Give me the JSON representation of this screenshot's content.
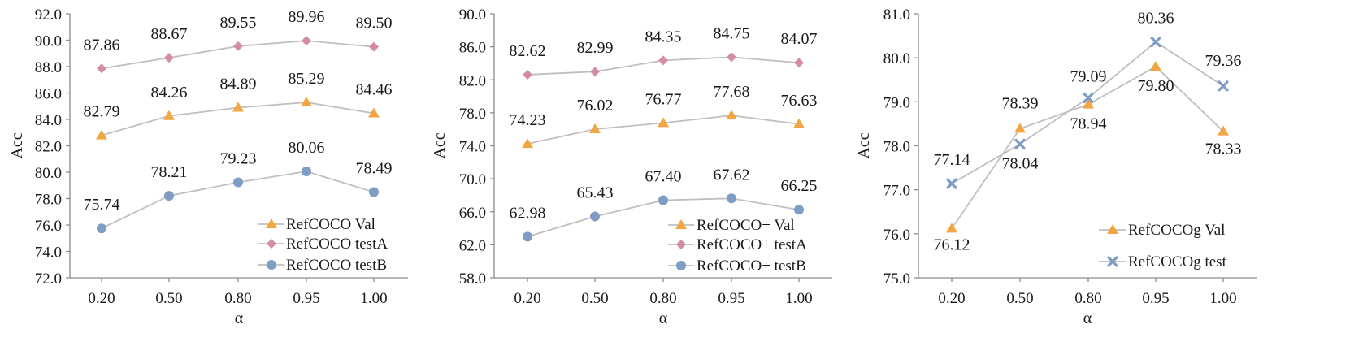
{
  "chart_data": [
    {
      "type": "line",
      "xlabel": "α",
      "ylabel": "Acc",
      "x": [
        "0.20",
        "0.50",
        "0.80",
        "0.95",
        "1.00"
      ],
      "ylim": [
        72.0,
        92.0
      ],
      "yticks": [
        "72.0",
        "74.0",
        "76.0",
        "78.0",
        "80.0",
        "82.0",
        "84.0",
        "86.0",
        "88.0",
        "90.0",
        "92.0"
      ],
      "legend": "bottom-right",
      "grid": false,
      "series": [
        {
          "name": "RefCOCO Val",
          "marker": "triangle",
          "color": "#f2a541",
          "values": [
            82.79,
            84.26,
            84.89,
            85.29,
            84.46
          ],
          "labels": [
            "82.79",
            "84.26",
            "84.89",
            "85.29",
            "84.46"
          ]
        },
        {
          "name": "RefCOCO testA",
          "marker": "diamond",
          "color": "#d48ca6",
          "values": [
            87.86,
            88.67,
            89.55,
            89.96,
            89.5
          ],
          "labels": [
            "87.86",
            "88.67",
            "89.55",
            "89.96",
            "89.50"
          ]
        },
        {
          "name": "RefCOCO testB",
          "marker": "circle",
          "color": "#7f9cc4",
          "values": [
            75.74,
            78.21,
            79.23,
            80.06,
            78.49
          ],
          "labels": [
            "75.74",
            "78.21",
            "79.23",
            "80.06",
            "78.49"
          ]
        }
      ]
    },
    {
      "type": "line",
      "xlabel": "α",
      "ylabel": "Acc",
      "x": [
        "0.20",
        "0.50",
        "0.80",
        "0.95",
        "1.00"
      ],
      "ylim": [
        58.0,
        90.0
      ],
      "yticks": [
        "58.0",
        "62.0",
        "66.0",
        "70.0",
        "74.0",
        "78.0",
        "82.0",
        "86.0",
        "90.0"
      ],
      "legend": "bottom-right",
      "grid": false,
      "series": [
        {
          "name": "RefCOCO+ Val",
          "marker": "triangle",
          "color": "#f2a541",
          "values": [
            74.23,
            76.02,
            76.77,
            77.68,
            76.63
          ],
          "labels": [
            "74.23",
            "76.02",
            "76.77",
            "77.68",
            "76.63"
          ]
        },
        {
          "name": "RefCOCO+ testA",
          "marker": "diamond",
          "color": "#d48ca6",
          "values": [
            82.62,
            82.99,
            84.35,
            84.75,
            84.07
          ],
          "labels": [
            "82.62",
            "82.99",
            "84.35",
            "84.75",
            "84.07"
          ]
        },
        {
          "name": "RefCOCO+ testB",
          "marker": "circle",
          "color": "#7f9cc4",
          "values": [
            62.98,
            65.43,
            67.4,
            67.62,
            66.25
          ],
          "labels": [
            "62.98",
            "65.43",
            "67.40",
            "67.62",
            "66.25"
          ]
        }
      ]
    },
    {
      "type": "line",
      "xlabel": "α",
      "ylabel": "Acc",
      "x": [
        "0.20",
        "0.50",
        "0.80",
        "0.95",
        "1.00"
      ],
      "ylim": [
        75.0,
        81.0
      ],
      "yticks": [
        "75.0",
        "76.0",
        "77.0",
        "78.0",
        "79.0",
        "80.0",
        "81.0"
      ],
      "legend": "bottom-right",
      "grid": false,
      "series": [
        {
          "name": "RefCOCOg Val",
          "marker": "triangle",
          "color": "#f2a541",
          "values": [
            76.12,
            78.39,
            78.94,
            79.8,
            78.33
          ],
          "labels": [
            "76.12",
            "78.39",
            "78.94",
            "79.80",
            "78.33"
          ]
        },
        {
          "name": "RefCOCOg test",
          "marker": "x",
          "color": "#7f9cc4",
          "values": [
            77.14,
            78.04,
            79.09,
            80.36,
            79.36
          ],
          "labels": [
            "77.14",
            "78.04",
            "79.09",
            "80.36",
            "79.36"
          ]
        }
      ]
    }
  ]
}
